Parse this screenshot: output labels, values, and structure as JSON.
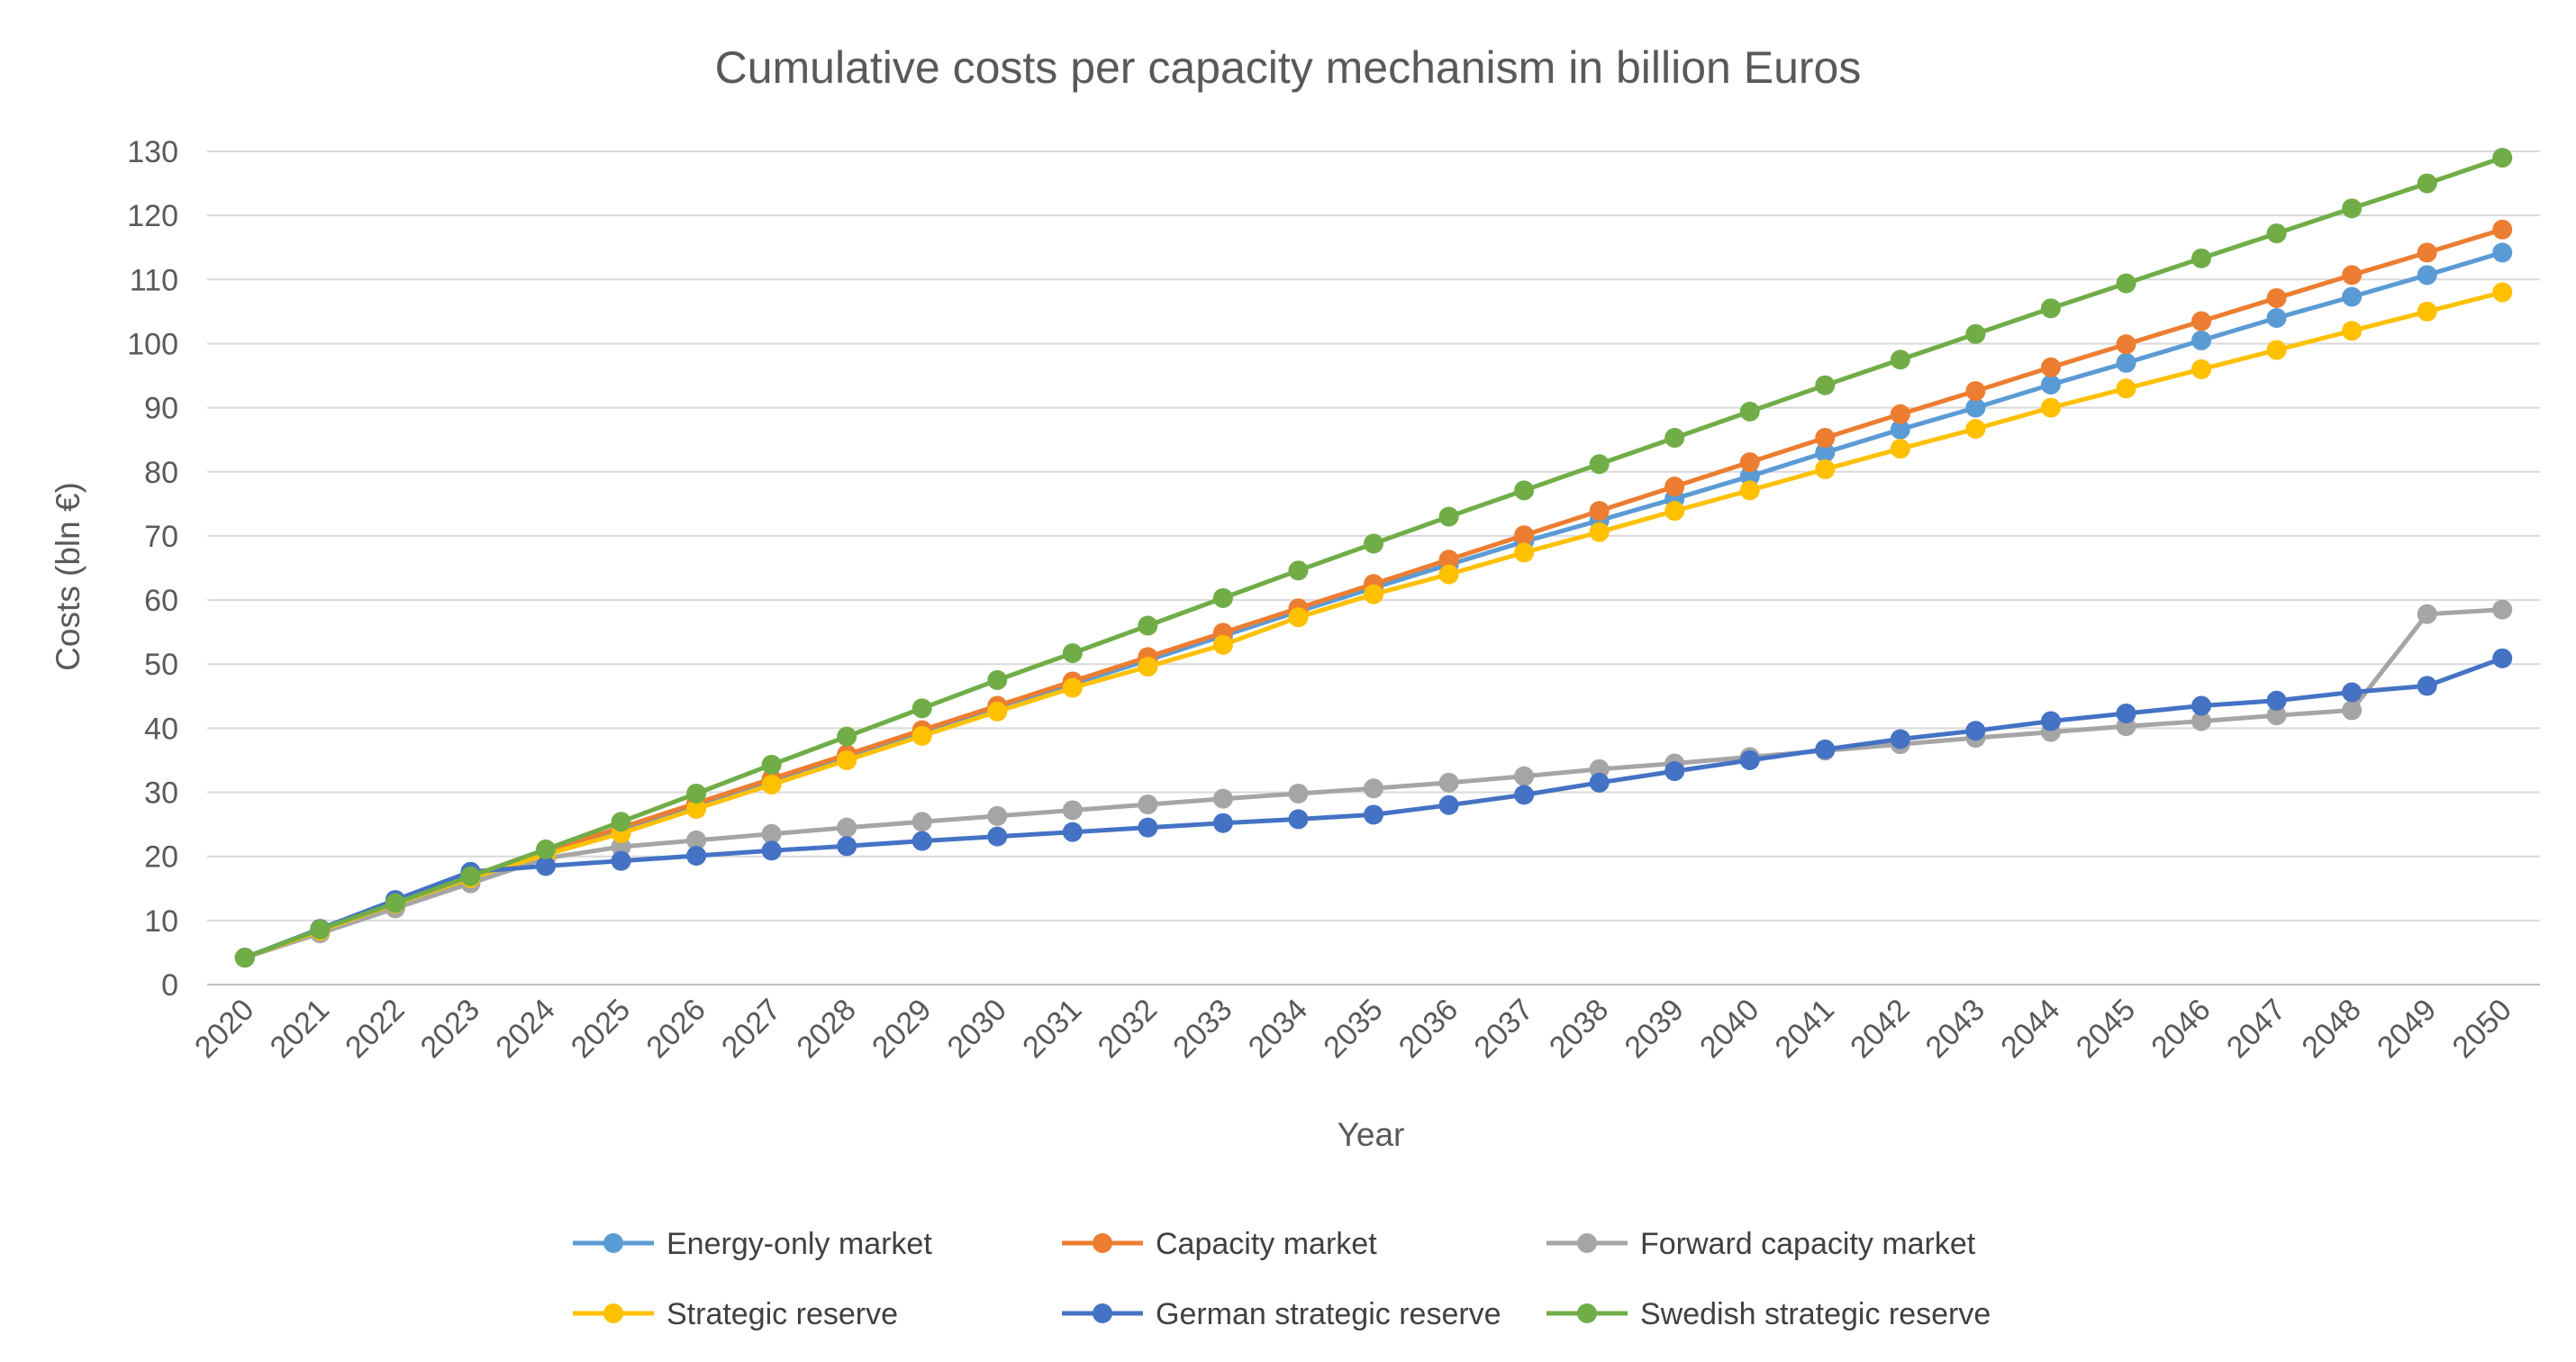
{
  "chart_data": {
    "type": "line",
    "title": "Cumulative costs per capacity mechanism in billion Euros",
    "xlabel": "Year",
    "ylabel": "Costs (bln €)",
    "ylim": [
      0,
      130
    ],
    "yticks": [
      0,
      10,
      20,
      30,
      40,
      50,
      60,
      70,
      80,
      90,
      100,
      110,
      120,
      130
    ],
    "grid": "horizontal",
    "legend_position": "bottom",
    "categories": [
      "2020",
      "2021",
      "2022",
      "2023",
      "2024",
      "2025",
      "2026",
      "2027",
      "2028",
      "2029",
      "2030",
      "2031",
      "2032",
      "2033",
      "2034",
      "2035",
      "2036",
      "2037",
      "2038",
      "2039",
      "2040",
      "2041",
      "2042",
      "2043",
      "2044",
      "2045",
      "2046",
      "2047",
      "2048",
      "2049",
      "2050"
    ],
    "series": [
      {
        "name": "Energy-only market",
        "color": "#5B9BD5",
        "values": [
          4.2,
          8.4,
          12.6,
          16.5,
          20.5,
          24.2,
          28.0,
          31.8,
          35.5,
          39.3,
          43.1,
          46.9,
          50.6,
          54.4,
          58.2,
          61.9,
          65.5,
          69.1,
          72.4,
          75.8,
          79.3,
          83.0,
          86.6,
          90.0,
          93.6,
          97.0,
          100.5,
          104.0,
          107.3,
          110.7,
          114.2
        ]
      },
      {
        "name": "Capacity market",
        "color": "#ED7D31",
        "values": [
          4.2,
          8.4,
          12.6,
          16.8,
          20.8,
          24.5,
          28.3,
          32.1,
          35.9,
          39.7,
          43.5,
          47.3,
          51.1,
          54.9,
          58.7,
          62.5,
          66.3,
          70.1,
          73.9,
          77.7,
          81.5,
          85.3,
          89.0,
          92.6,
          96.3,
          99.9,
          103.5,
          107.1,
          110.7,
          114.2,
          117.8
        ]
      },
      {
        "name": "Forward capacity market",
        "color": "#A5A5A5",
        "values": [
          4.2,
          8.0,
          11.9,
          15.8,
          19.7,
          21.5,
          22.5,
          23.5,
          24.5,
          25.4,
          26.3,
          27.2,
          28.1,
          29.0,
          29.8,
          30.6,
          31.5,
          32.5,
          33.6,
          34.5,
          35.5,
          36.5,
          37.5,
          38.5,
          39.4,
          40.3,
          41.1,
          42.0,
          42.8,
          57.8,
          58.5
        ]
      },
      {
        "name": "Strategic reserve",
        "color": "#FFC000",
        "values": [
          4.2,
          8.4,
          12.6,
          16.6,
          20.3,
          23.6,
          27.4,
          31.2,
          35.0,
          38.8,
          42.6,
          46.3,
          49.6,
          53.0,
          57.3,
          60.9,
          64.0,
          67.4,
          70.6,
          73.9,
          77.1,
          80.4,
          83.6,
          86.7,
          90.0,
          93.0,
          96.0,
          99.0,
          102.0,
          105.0,
          108.0
        ]
      },
      {
        "name": "German strategic reserve",
        "color": "#4472C4",
        "values": [
          4.2,
          8.7,
          13.2,
          17.6,
          18.5,
          19.3,
          20.1,
          20.9,
          21.6,
          22.4,
          23.1,
          23.8,
          24.5,
          25.2,
          25.8,
          26.5,
          28.0,
          29.6,
          31.5,
          33.3,
          35.0,
          36.7,
          38.3,
          39.6,
          41.1,
          42.3,
          43.5,
          44.3,
          45.6,
          46.6,
          50.9
        ]
      },
      {
        "name": "Swedish strategic reserve",
        "color": "#70AD47",
        "values": [
          4.2,
          8.6,
          12.7,
          16.9,
          21.1,
          25.4,
          29.8,
          34.3,
          38.7,
          43.1,
          47.5,
          51.7,
          56.0,
          60.3,
          64.6,
          68.8,
          73.0,
          77.1,
          81.2,
          85.3,
          89.4,
          93.5,
          97.5,
          101.5,
          105.5,
          109.4,
          113.3,
          117.2,
          121.1,
          125.0,
          129.0
        ]
      }
    ]
  }
}
